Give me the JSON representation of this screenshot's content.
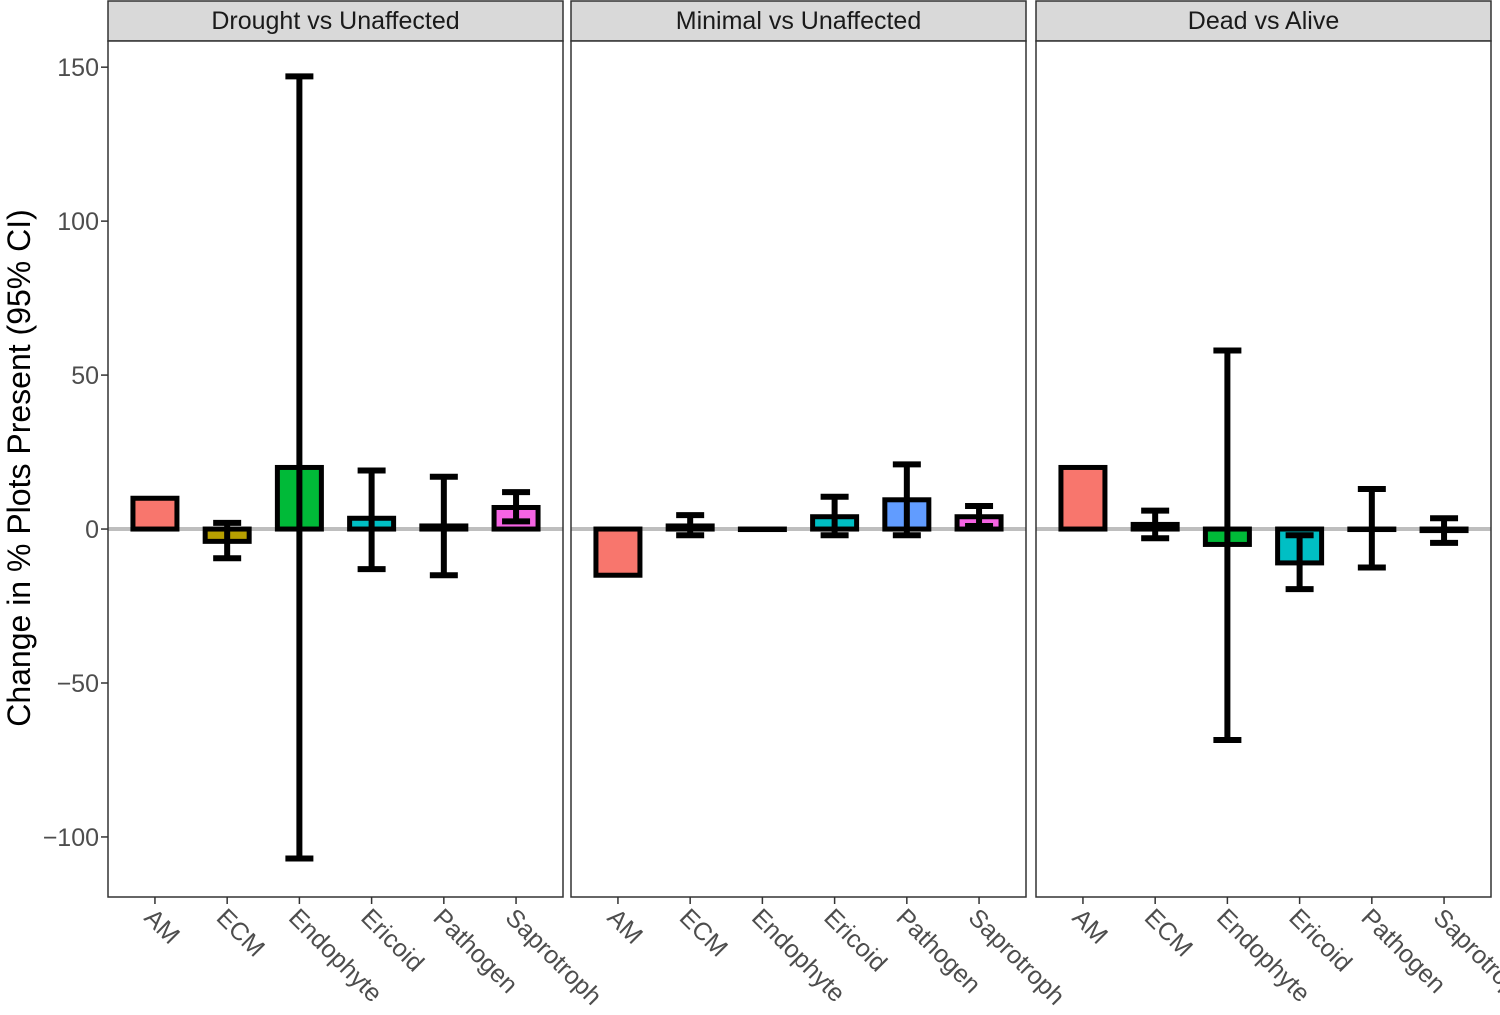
{
  "chart_data": {
    "type": "bar",
    "title": "",
    "xlabel": "",
    "ylabel": "Change in % Plots Present (95% CI)",
    "ylim": [
      -119.5,
      158.5
    ],
    "yticks": [
      -100,
      -50,
      0,
      50,
      100,
      150
    ],
    "ytick_labels": [
      "−100",
      "−50",
      "0",
      "50",
      "100",
      "150"
    ],
    "grid": false,
    "legend": "none",
    "reference_line": 0,
    "categories": [
      "AM",
      "ECM",
      "Endophyte",
      "Ericoid",
      "Pathogen",
      "Saprotroph"
    ],
    "category_colors": {
      "AM": "#F8766D",
      "ECM": "#B79F00",
      "Endophyte": "#00BA38",
      "Ericoid": "#00BFC4",
      "Pathogen": "#619CFF",
      "Saprotroph": "#F564E3"
    },
    "panels": [
      {
        "title": "Drought vs Unaffected",
        "values": [
          10,
          -4,
          20,
          3.5,
          1,
          7
        ],
        "ci_upper": [
          10,
          2,
          147,
          19,
          17,
          12
        ],
        "ci_lower": [
          10,
          -9.5,
          -107,
          -13,
          -15,
          2.5
        ]
      },
      {
        "title": "Minimal vs Unaffected",
        "values": [
          -15,
          1,
          0,
          4,
          9.5,
          4
        ],
        "ci_upper": [
          -15,
          4.5,
          0,
          10.5,
          21,
          7.5
        ],
        "ci_lower": [
          -15,
          -2,
          0,
          -2,
          -2,
          1
        ]
      },
      {
        "title": "Dead vs Alive",
        "values": [
          20,
          1.5,
          -5,
          -11,
          0,
          -0.5
        ],
        "ci_upper": [
          20,
          6,
          58,
          -2,
          13,
          3.5
        ],
        "ci_lower": [
          20,
          -3,
          -68.5,
          -19.5,
          -12.5,
          -4.5
        ]
      }
    ]
  }
}
